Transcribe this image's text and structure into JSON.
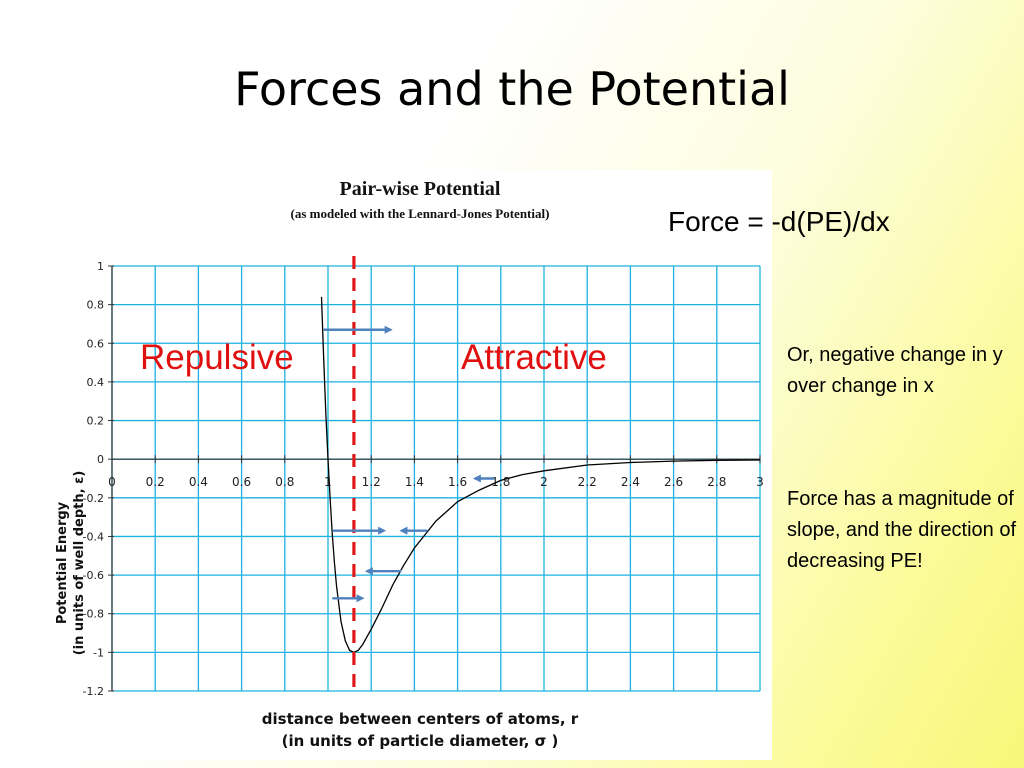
{
  "slide": {
    "title": "Forces and the Potential",
    "force_equation": "Force = -d(PE)/dx",
    "notes": [
      "Or, negative change in y over change in x",
      "Force has a magnitude of slope, and the direction of decreasing PE!"
    ]
  },
  "chart_data": {
    "type": "line",
    "title": "Pair-wise Potential",
    "subtitle": "(as modeled with the Lennard-Jones Potential)",
    "ylabel_line1": "Potential Energy",
    "ylabel_line2": "(in units of well depth, ε)",
    "xlabel_line1": "distance between centers of atoms, r",
    "xlabel_line2": "(in units of particle diameter, σ )",
    "xlim": [
      0,
      3
    ],
    "ylim": [
      -1.2,
      1
    ],
    "x_ticks": [
      "0",
      "0.2",
      "0.4",
      "0.6",
      "0.8",
      "1",
      "1.2",
      "1.4",
      "1.6",
      "1.8",
      "2",
      "2.2",
      "2.4",
      "2.6",
      "2.8",
      "3"
    ],
    "y_ticks": [
      "1",
      "0.8",
      "0.6",
      "0.4",
      "0.2",
      "0",
      "-0.2",
      "-0.4",
      "-0.6",
      "-0.8",
      "-1",
      "-1.2"
    ],
    "grid": true,
    "grid_color": "#1ab3e0",
    "curve_color": "#000000",
    "series": [
      {
        "x": [
          0.97,
          0.98,
          0.99,
          1.0,
          1.01,
          1.02,
          1.03,
          1.04,
          1.06,
          1.08,
          1.1,
          1.12,
          1.14,
          1.16,
          1.18,
          1.2,
          1.25,
          1.3,
          1.35,
          1.4,
          1.45,
          1.5,
          1.6,
          1.7,
          1.8,
          1.9,
          2.0,
          2.2,
          2.4,
          2.6,
          2.8,
          3.0
        ],
        "y": [
          0.84,
          0.52,
          0.24,
          0.0,
          -0.21,
          -0.39,
          -0.54,
          -0.66,
          -0.84,
          -0.94,
          -0.99,
          -1.0,
          -0.99,
          -0.96,
          -0.92,
          -0.88,
          -0.77,
          -0.65,
          -0.55,
          -0.46,
          -0.39,
          -0.32,
          -0.22,
          -0.16,
          -0.11,
          -0.08,
          -0.06,
          -0.03,
          -0.017,
          -0.01,
          -0.006,
          -0.004
        ]
      }
    ],
    "divider": {
      "x": 1.12,
      "color": "#e01818"
    },
    "regions": {
      "left": "Repulsive",
      "right": "Attractive"
    },
    "arrow_color": "#4f81bd",
    "arrows": [
      {
        "x1": 0.98,
        "x2": 1.29,
        "y": 0.67
      },
      {
        "x1": 1.02,
        "x2": 1.26,
        "y": -0.37
      },
      {
        "x1": 1.46,
        "x2": 1.34,
        "y": -0.37
      },
      {
        "x1": 1.34,
        "x2": 1.18,
        "y": -0.58
      },
      {
        "x1": 1.02,
        "x2": 1.16,
        "y": -0.72
      },
      {
        "x1": 1.77,
        "x2": 1.68,
        "y": -0.1
      }
    ]
  }
}
